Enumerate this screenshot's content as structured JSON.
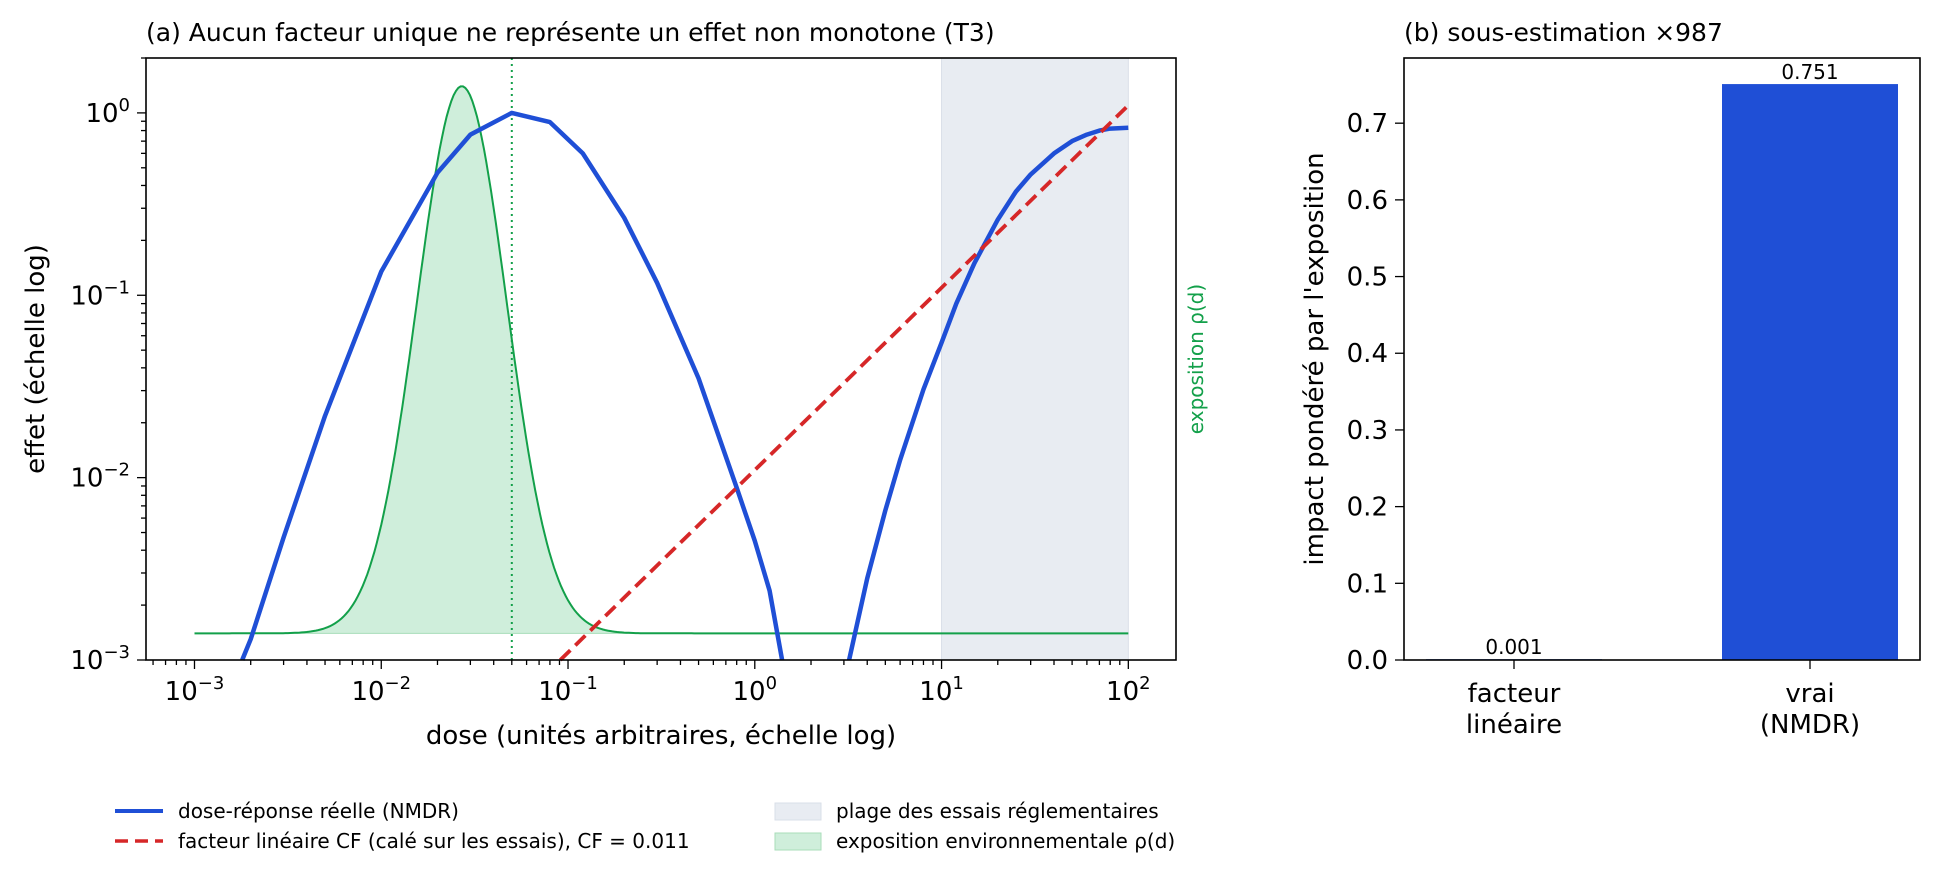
{
  "colors": {
    "nmdr": "#1f4fd6",
    "linear": "#d62728",
    "exposure_line": "#13a04a",
    "exposure_fill": "#cfeedb",
    "exposure_fill_edge": "#a8ddb9",
    "trial_band": "#e8ecf2",
    "trial_band_edge": "#d9dfe8"
  },
  "chart_data": [
    {
      "panel": "a",
      "type": "line",
      "title": "(a) Aucun facteur unique ne représente un effet non monotone (T3)",
      "xlabel": "dose (unités arbitraires, échelle log)",
      "ylabel": "effet (échelle log)",
      "right_label": "exposition ρ(d)",
      "xscale": "log",
      "yscale": "log",
      "xlim": [
        0.00055,
        180
      ],
      "ylim": [
        0.001,
        2
      ],
      "x_ticks": [
        {
          "base": "10",
          "exp": "−3",
          "value": 0.001
        },
        {
          "base": "10",
          "exp": "−2",
          "value": 0.01
        },
        {
          "base": "10",
          "exp": "−1",
          "value": 0.1
        },
        {
          "base": "10",
          "exp": "0",
          "value": 1
        },
        {
          "base": "10",
          "exp": "1",
          "value": 10
        },
        {
          "base": "10",
          "exp": "2",
          "value": 100
        }
      ],
      "y_ticks": [
        {
          "base": "10",
          "exp": "−3",
          "value": 0.001
        },
        {
          "base": "10",
          "exp": "−2",
          "value": 0.01
        },
        {
          "base": "10",
          "exp": "−1",
          "value": 0.1
        },
        {
          "base": "10",
          "exp": "0",
          "value": 1
        }
      ],
      "series": [
        {
          "name": "dose-réponse réelle (NMDR)",
          "style": "solid",
          "segments": [
            {
              "x": [
                0.0018,
                0.002,
                0.003,
                0.005,
                0.01,
                0.02,
                0.03,
                0.05,
                0.08,
                0.12,
                0.2,
                0.3,
                0.5,
                0.8,
                1.0,
                1.2,
                1.4
              ],
              "y": [
                0.001,
                0.0013,
                0.0047,
                0.0218,
                0.135,
                0.47,
                0.76,
                1.0,
                0.89,
                0.6,
                0.266,
                0.117,
                0.035,
                0.0088,
                0.0045,
                0.0024,
                0.001
              ]
            },
            {
              "x": [
                3.2,
                4,
                5,
                6,
                8,
                10,
                12,
                15,
                20,
                25,
                30,
                40,
                50,
                60,
                70,
                80,
                100
              ],
              "y": [
                0.001,
                0.0028,
                0.0066,
                0.0125,
                0.0305,
                0.055,
                0.09,
                0.15,
                0.26,
                0.37,
                0.46,
                0.6,
                0.7,
                0.76,
                0.8,
                0.82,
                0.83
              ]
            }
          ]
        },
        {
          "name": "facteur linéaire CF (calé sur les essais), CF = 0.011",
          "style": "dashed",
          "x": [
            0.0909,
            100
          ],
          "y": [
            0.001,
            1.1
          ]
        },
        {
          "name": "exposition environnementale ρ(d)",
          "style": "solid-thin-filled",
          "axis": "secondary",
          "baseline_y": 0.0014,
          "center_x": 0.027,
          "peak_y": 1.4,
          "mode_marker_x": 0.05
        }
      ],
      "bands": [
        {
          "name": "plage des essais réglementaires",
          "x_from": 10,
          "x_to": 100
        }
      ]
    },
    {
      "panel": "b",
      "type": "bar",
      "title": "(b) sous-estimation ×987",
      "ylabel": "impact pondéré par l'exposition",
      "categories": [
        "facteur linéaire",
        "vrai (NMDR)"
      ],
      "category_lines": [
        [
          "facteur",
          "linéaire"
        ],
        [
          "vrai",
          "(NMDR)"
        ]
      ],
      "values": [
        0.001,
        0.751
      ],
      "value_labels": [
        "0.001",
        "0.751"
      ],
      "ylim": [
        0,
        0.785
      ],
      "y_ticks": [
        "0.0",
        "0.1",
        "0.2",
        "0.3",
        "0.4",
        "0.5",
        "0.6",
        "0.7"
      ]
    }
  ],
  "legend": [
    {
      "label": "dose-réponse réelle (NMDR)",
      "kind": "solid-line",
      "color_key": "nmdr"
    },
    {
      "label": "facteur linéaire CF (calé sur les essais), CF = 0.011",
      "kind": "dashed-line",
      "color_key": "linear"
    },
    {
      "label": "plage des essais réglementaires",
      "kind": "patch",
      "color_key": "trial_band"
    },
    {
      "label": "exposition environnementale ρ(d)",
      "kind": "patch",
      "color_key": "exposure_fill"
    }
  ]
}
